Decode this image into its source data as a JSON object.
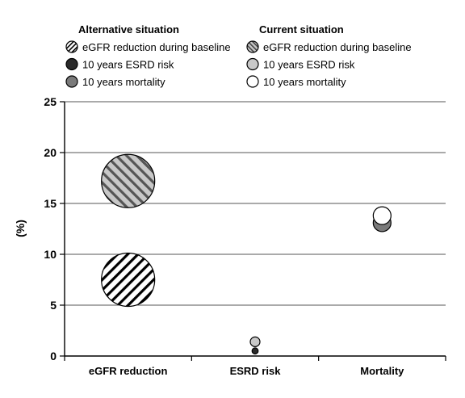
{
  "chart_data": {
    "type": "scatter",
    "ylabel": "(%)",
    "ylim": [
      0,
      25
    ],
    "yticks": [
      0,
      5,
      10,
      15,
      20,
      25
    ],
    "categories": [
      "eGFR reduction",
      "ESRD risk",
      "Mortality"
    ],
    "grid": true,
    "legend": [
      {
        "group": "Alternative situation",
        "entries": [
          {
            "label": "eGFR reduction during baseline",
            "style": "hatch-white"
          },
          {
            "label": "10 years ESRD risk",
            "style": "dark"
          },
          {
            "label": "10 years mortality",
            "style": "mid-gray"
          }
        ]
      },
      {
        "group": "Current situation",
        "entries": [
          {
            "label": "eGFR reduction during baseline",
            "style": "hatch-gray"
          },
          {
            "label": "10 years ESRD risk",
            "style": "light-gray"
          },
          {
            "label": "10 years mortality",
            "style": "white"
          }
        ]
      }
    ],
    "series": [
      {
        "situation": "Current situation",
        "category": "eGFR reduction",
        "y": 17.2,
        "style": "hatch-gray"
      },
      {
        "situation": "Alternative situation",
        "category": "eGFR reduction",
        "y": 7.5,
        "style": "hatch-white"
      },
      {
        "situation": "Current situation",
        "category": "ESRD risk",
        "y": 1.4,
        "style": "light-gray"
      },
      {
        "situation": "Alternative situation",
        "category": "ESRD risk",
        "y": 0.5,
        "style": "dark"
      },
      {
        "situation": "Alternative situation",
        "category": "Mortality",
        "y": 13.1,
        "style": "mid-gray"
      },
      {
        "situation": "Current situation",
        "category": "Mortality",
        "y": 13.8,
        "style": "white"
      }
    ],
    "colors": {
      "dark": "#2a2a2a",
      "mid-gray": "#7a7a7a",
      "light-gray": "#c8c8c8",
      "white": "#ffffff",
      "hatch-gray-bg": "#c8c8c8",
      "grid": "#555555"
    }
  }
}
